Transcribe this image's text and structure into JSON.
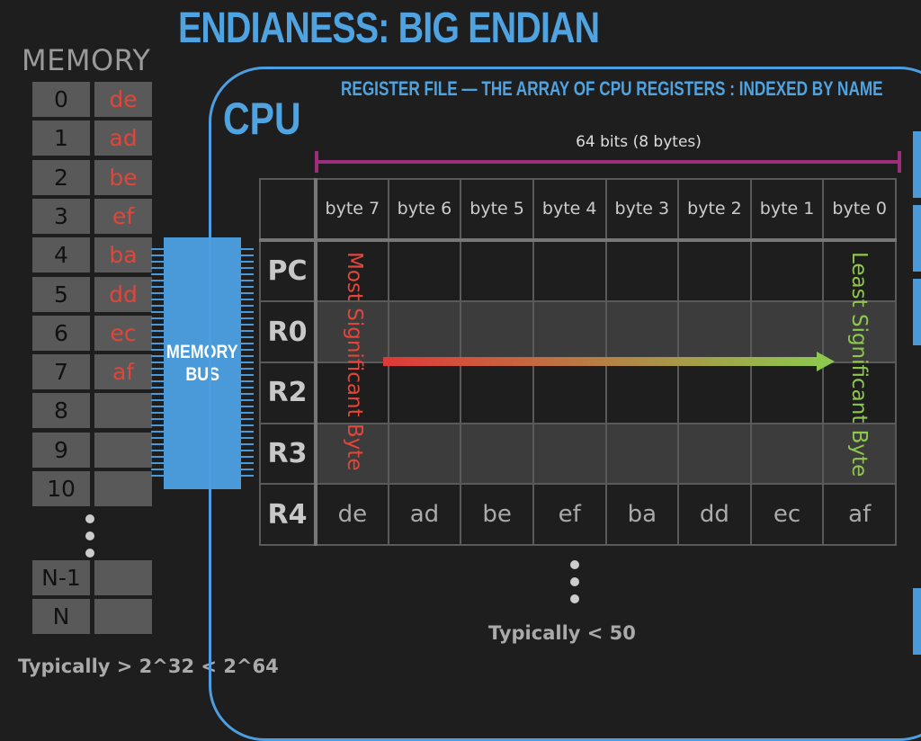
{
  "title": "ENDIANESS: BIG ENDIAN",
  "memory": {
    "label": "MEMORY",
    "rows": [
      {
        "index": "0",
        "value": "de"
      },
      {
        "index": "1",
        "value": "ad"
      },
      {
        "index": "2",
        "value": "be"
      },
      {
        "index": "3",
        "value": "ef"
      },
      {
        "index": "4",
        "value": "ba"
      },
      {
        "index": "5",
        "value": "dd"
      },
      {
        "index": "6",
        "value": "ec"
      },
      {
        "index": "7",
        "value": "af"
      },
      {
        "index": "8",
        "value": ""
      },
      {
        "index": "9",
        "value": ""
      },
      {
        "index": "10",
        "value": ""
      }
    ],
    "tail_rows": [
      {
        "index": "N-1",
        "value": ""
      },
      {
        "index": "N",
        "value": ""
      }
    ],
    "footnote": "Typically > 2^32 < 2^64"
  },
  "bus": {
    "line1": "MEMORY",
    "line2": "BUS"
  },
  "cpu": {
    "label": "CPU",
    "subtitle": "REGISTER FILE — THE ARRAY OF CPU REGISTERS : INDEXED BY NAME",
    "bits_label": "64 bits (8 bytes)",
    "byte_headers": [
      "byte 7",
      "byte 6",
      "byte 5",
      "byte 4",
      "byte 3",
      "byte 2",
      "byte 1",
      "byte 0"
    ],
    "registers": [
      {
        "name": "PC",
        "values": [
          "",
          "",
          "",
          "",
          "",
          "",
          "",
          ""
        ]
      },
      {
        "name": "R0",
        "values": [
          "",
          "",
          "",
          "",
          "",
          "",
          "",
          ""
        ]
      },
      {
        "name": "R2",
        "values": [
          "",
          "",
          "",
          "",
          "",
          "",
          "",
          ""
        ]
      },
      {
        "name": "R3",
        "values": [
          "",
          "",
          "",
          "",
          "",
          "",
          "",
          ""
        ]
      },
      {
        "name": "R4",
        "values": [
          "de",
          "ad",
          "be",
          "ef",
          "ba",
          "dd",
          "ec",
          "af"
        ]
      }
    ],
    "msb_label": "Most Significant Byte",
    "lsb_label": "Least Significant Byte",
    "footnote": "Typically < 50"
  },
  "colors": {
    "accent": "#4fa3e0",
    "memory_value": "#e0463a",
    "msb": "#e0463a",
    "lsb": "#8ec74e",
    "bits_bracket": "#9c2e7c"
  }
}
